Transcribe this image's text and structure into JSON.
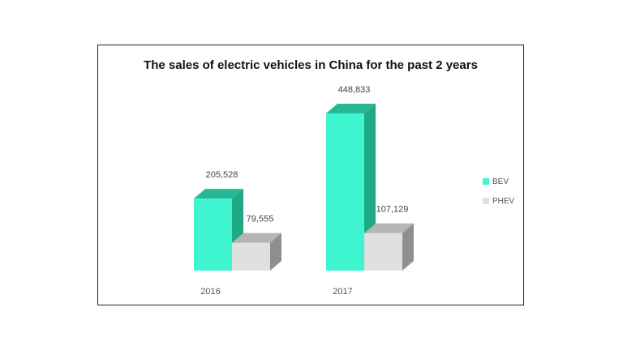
{
  "chart_data": {
    "type": "bar",
    "title": "The sales of electric vehicles in China for the past 2 years",
    "xlabel": "",
    "ylabel": "",
    "categories": [
      "2016",
      "2017"
    ],
    "series": [
      {
        "name": "BEV",
        "values": [
          205528,
          448833
        ],
        "data_labels": [
          "205,528",
          "448,833"
        ],
        "color": "#3ef5d0",
        "side_color": "#1fa886",
        "top_color": "#26b893"
      },
      {
        "name": "PHEV",
        "values": [
          79555,
          107129
        ],
        "data_labels": [
          "79,555",
          "107,129"
        ],
        "color": "#e0e0e0",
        "side_color": "#8f8f8f",
        "top_color": "#b5b5b5"
      }
    ],
    "ylim": [
      0,
      448833
    ],
    "grid": false,
    "legend_position": "right",
    "style": "3d-column"
  }
}
